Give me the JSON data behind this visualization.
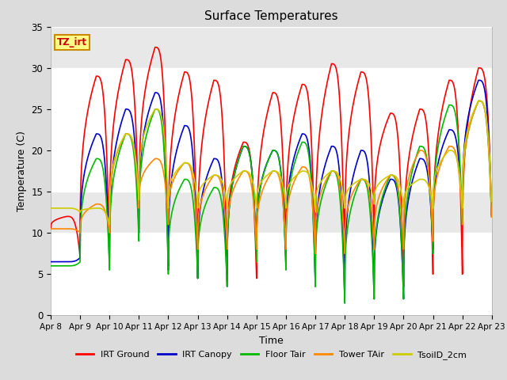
{
  "title": "Surface Temperatures",
  "xlabel": "Time",
  "ylabel": "Temperature (C)",
  "ylim": [
    0,
    35
  ],
  "yticks": [
    0,
    5,
    10,
    15,
    20,
    25,
    30,
    35
  ],
  "xtick_labels": [
    "Apr 8",
    "Apr 9",
    "Apr 10",
    "Apr 11",
    "Apr 12",
    "Apr 13",
    "Apr 14",
    "Apr 15",
    "Apr 16",
    "Apr 17",
    "Apr 18",
    "Apr 19",
    "Apr 20",
    "Apr 21",
    "Apr 22",
    "Apr 23"
  ],
  "bg_color": "#dcdcdc",
  "plot_bg_color": "#ffffff",
  "legend_entries": [
    "IRT Ground",
    "IRT Canopy",
    "Floor Tair",
    "Tower TAir",
    "TsoilD_2cm"
  ],
  "legend_colors": [
    "#ff0000",
    "#0000cc",
    "#00bb00",
    "#ff8800",
    "#cccc00"
  ],
  "annotation_text": "TZ_irt",
  "annotation_bg": "#ffff88",
  "annotation_border": "#cc8800",
  "n_days": 15,
  "series": {
    "IRT_Ground": {
      "color": "#ff0000",
      "lw": 1.2,
      "daily": [
        {
          "peak": 12.0,
          "trough": 10.5,
          "trough2": 7.0
        },
        {
          "peak": 29.0,
          "trough": 7.0,
          "trough2": 7.0
        },
        {
          "peak": 31.0,
          "trough": 7.0,
          "trough2": 10.5
        },
        {
          "peak": 32.5,
          "trough": 10.5,
          "trough2": 6.0
        },
        {
          "peak": 29.5,
          "trough": 6.0,
          "trough2": 4.5
        },
        {
          "peak": 28.5,
          "trough": 4.5,
          "trough2": 5.0
        },
        {
          "peak": 21.0,
          "trough": 5.0,
          "trough2": 4.5
        },
        {
          "peak": 27.0,
          "trough": 4.5,
          "trough2": 6.5
        },
        {
          "peak": 28.0,
          "trough": 6.5,
          "trough2": 4.0
        },
        {
          "peak": 30.5,
          "trough": 4.0,
          "trough2": 6.5
        },
        {
          "peak": 29.5,
          "trough": 6.5,
          "trough2": 9.0
        },
        {
          "peak": 24.5,
          "trough": 9.0,
          "trough2": 3.5
        },
        {
          "peak": 25.0,
          "trough": 3.5,
          "trough2": 5.0
        },
        {
          "peak": 28.5,
          "trough": 5.0,
          "trough2": 5.0
        },
        {
          "peak": 30.0,
          "trough": 5.0,
          "trough2": 11.0
        }
      ]
    },
    "IRT_Canopy": {
      "color": "#0000cc",
      "lw": 1.2,
      "daily": [
        {
          "peak": 6.5,
          "trough": 6.5,
          "trough2": 7.0
        },
        {
          "peak": 22.0,
          "trough": 7.0,
          "trough2": 6.0
        },
        {
          "peak": 25.0,
          "trough": 6.0,
          "trough2": 10.0
        },
        {
          "peak": 27.0,
          "trough": 10.0,
          "trough2": 5.5
        },
        {
          "peak": 23.0,
          "trough": 5.5,
          "trough2": 4.5
        },
        {
          "peak": 19.0,
          "trough": 4.5,
          "trough2": 3.5
        },
        {
          "peak": 20.5,
          "trough": 3.5,
          "trough2": 7.0
        },
        {
          "peak": 20.0,
          "trough": 7.0,
          "trough2": 6.0
        },
        {
          "peak": 22.0,
          "trough": 6.0,
          "trough2": 3.5
        },
        {
          "peak": 20.5,
          "trough": 3.5,
          "trough2": 1.5
        },
        {
          "peak": 20.0,
          "trough": 1.5,
          "trough2": 2.0
        },
        {
          "peak": 16.5,
          "trough": 2.0,
          "trough2": 2.0
        },
        {
          "peak": 19.0,
          "trough": 2.0,
          "trough2": 8.0
        },
        {
          "peak": 22.5,
          "trough": 8.0,
          "trough2": 11.0
        },
        {
          "peak": 28.5,
          "trough": 11.0,
          "trough2": 11.0
        }
      ]
    },
    "Floor_Tair": {
      "color": "#00bb00",
      "lw": 1.2,
      "daily": [
        {
          "peak": 6.0,
          "trough": 6.0,
          "trough2": 6.5
        },
        {
          "peak": 19.0,
          "trough": 6.5,
          "trough2": 5.5
        },
        {
          "peak": 22.0,
          "trough": 5.5,
          "trough2": 9.0
        },
        {
          "peak": 25.0,
          "trough": 9.0,
          "trough2": 5.0
        },
        {
          "peak": 16.5,
          "trough": 5.0,
          "trough2": 4.5
        },
        {
          "peak": 15.5,
          "trough": 4.5,
          "trough2": 3.5
        },
        {
          "peak": 20.5,
          "trough": 3.5,
          "trough2": 6.5
        },
        {
          "peak": 20.0,
          "trough": 6.5,
          "trough2": 5.5
        },
        {
          "peak": 21.0,
          "trough": 5.5,
          "trough2": 3.5
        },
        {
          "peak": 17.5,
          "trough": 3.5,
          "trough2": 1.5
        },
        {
          "peak": 16.5,
          "trough": 1.5,
          "trough2": 2.0
        },
        {
          "peak": 17.0,
          "trough": 2.0,
          "trough2": 2.0
        },
        {
          "peak": 20.5,
          "trough": 2.0,
          "trough2": 7.5
        },
        {
          "peak": 25.5,
          "trough": 7.5,
          "trough2": 11.0
        },
        {
          "peak": 26.0,
          "trough": 11.0,
          "trough2": 11.0
        }
      ]
    },
    "Tower_TAir": {
      "color": "#ff8800",
      "lw": 1.2,
      "daily": [
        {
          "peak": 10.5,
          "trough": 10.5,
          "trough2": 10.0
        },
        {
          "peak": 13.5,
          "trough": 10.0,
          "trough2": 10.0
        },
        {
          "peak": 22.0,
          "trough": 10.0,
          "trough2": 13.0
        },
        {
          "peak": 19.0,
          "trough": 13.0,
          "trough2": 11.0
        },
        {
          "peak": 18.5,
          "trough": 11.0,
          "trough2": 8.0
        },
        {
          "peak": 17.0,
          "trough": 8.0,
          "trough2": 8.0
        },
        {
          "peak": 17.5,
          "trough": 8.0,
          "trough2": 8.0
        },
        {
          "peak": 17.5,
          "trough": 8.0,
          "trough2": 8.0
        },
        {
          "peak": 18.0,
          "trough": 8.0,
          "trough2": 7.5
        },
        {
          "peak": 17.5,
          "trough": 7.5,
          "trough2": 7.5
        },
        {
          "peak": 16.5,
          "trough": 7.5,
          "trough2": 8.0
        },
        {
          "peak": 17.0,
          "trough": 8.0,
          "trough2": 8.0
        },
        {
          "peak": 20.0,
          "trough": 8.0,
          "trough2": 9.0
        },
        {
          "peak": 20.5,
          "trough": 9.0,
          "trough2": 11.0
        },
        {
          "peak": 26.0,
          "trough": 11.0,
          "trough2": 11.0
        }
      ]
    },
    "TsoilD_2cm": {
      "color": "#cccc00",
      "lw": 1.2,
      "daily": [
        {
          "peak": 13.0,
          "trough": 13.0,
          "trough2": 12.5
        },
        {
          "peak": 13.0,
          "trough": 12.5,
          "trough2": 11.0
        },
        {
          "peak": 22.0,
          "trough": 11.0,
          "trough2": 14.0
        },
        {
          "peak": 25.0,
          "trough": 14.0,
          "trough2": 13.0
        },
        {
          "peak": 18.5,
          "trough": 13.0,
          "trough2": 13.0
        },
        {
          "peak": 17.0,
          "trough": 13.0,
          "trough2": 13.0
        },
        {
          "peak": 17.5,
          "trough": 13.0,
          "trough2": 13.0
        },
        {
          "peak": 17.5,
          "trough": 13.0,
          "trough2": 13.0
        },
        {
          "peak": 17.5,
          "trough": 13.0,
          "trough2": 12.5
        },
        {
          "peak": 17.5,
          "trough": 12.5,
          "trough2": 13.0
        },
        {
          "peak": 16.5,
          "trough": 13.0,
          "trough2": 13.5
        },
        {
          "peak": 17.0,
          "trough": 13.5,
          "trough2": 13.0
        },
        {
          "peak": 16.5,
          "trough": 13.0,
          "trough2": 13.0
        },
        {
          "peak": 20.0,
          "trough": 13.0,
          "trough2": 13.0
        },
        {
          "peak": 26.0,
          "trough": 13.0,
          "trough2": 13.0
        }
      ]
    }
  }
}
